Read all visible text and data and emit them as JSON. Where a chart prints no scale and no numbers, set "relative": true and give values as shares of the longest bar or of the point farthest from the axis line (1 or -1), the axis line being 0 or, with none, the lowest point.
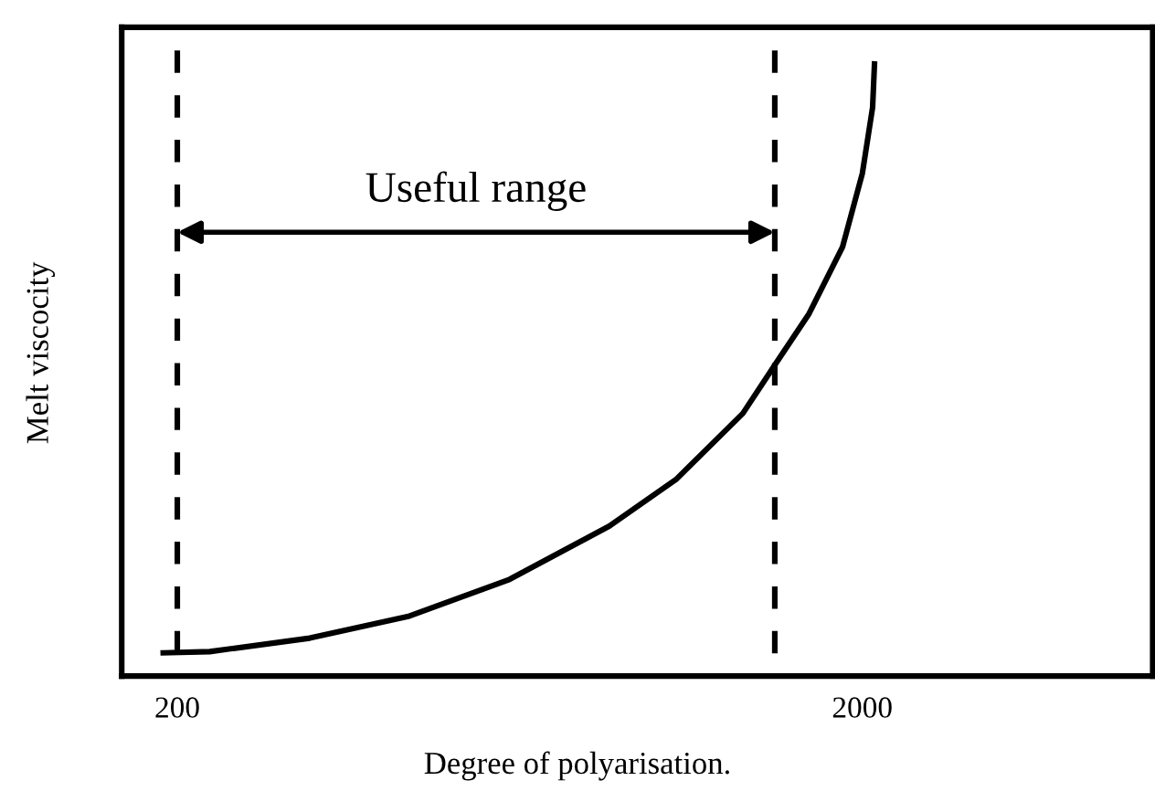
{
  "chart_data": {
    "type": "line",
    "xlabel": "Degree of polyarisation.",
    "ylabel": "Melt viscocity",
    "relative": true,
    "x": [
      163,
      285,
      548,
      810,
      1073,
      1335,
      1510,
      1686,
      1773,
      1860,
      1948,
      2000,
      2027,
      2032
    ],
    "series": [
      {
        "color": "#000000",
        "values": [
          0.038,
          0.04,
          0.062,
          0.098,
          0.158,
          0.245,
          0.321,
          0.429,
          0.511,
          0.592,
          0.701,
          0.821,
          0.929,
          1.0
        ]
      }
    ],
    "xlim": [
      54,
      2763
    ],
    "xticks": [
      200,
      2000
    ],
    "ref_lines": [
      {
        "axis": "x",
        "value": 200,
        "color": "#000000",
        "line_style": "dashed"
      },
      {
        "axis": "x",
        "value": 1770,
        "color": "#000000",
        "line_style": "dashed"
      }
    ],
    "annotations": [
      "Useful range"
    ],
    "grid": false,
    "legend": false,
    "marker": "none",
    "line_style": "solid"
  }
}
